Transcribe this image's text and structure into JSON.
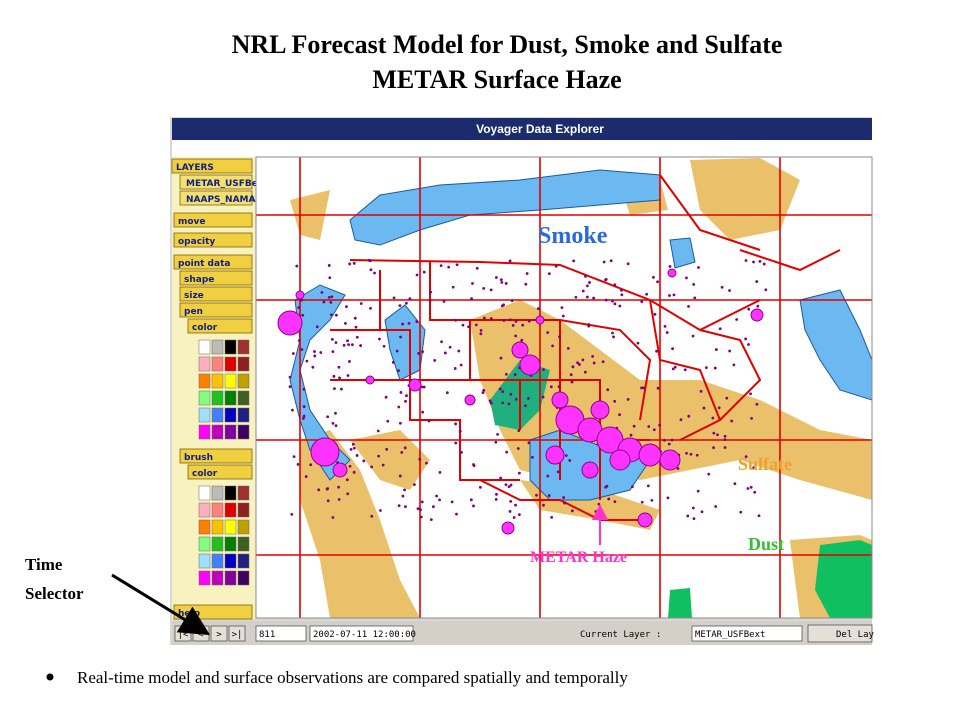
{
  "slide": {
    "title": [
      "NRL Forecast Model for Dust, Smoke and Sulfate",
      "METAR Surface Haze"
    ],
    "window_title": "Voyager Data Explorer",
    "panel": {
      "heading": "LAYERS",
      "layers": [
        "METAR_USFBext",
        "NAAPS_NAMAerTau"
      ],
      "controls": [
        "move",
        "opacity",
        "point data",
        "shape",
        "size",
        "pen",
        "color",
        "brush",
        "color",
        "help"
      ]
    },
    "map_labels": {
      "smoke": "Smoke",
      "sulfate": "Sulfate",
      "dust": "Dust",
      "haze": "METAR Haze"
    },
    "toolbar": {
      "nav_buttons": [
        "|<",
        "<",
        ">",
        ">|"
      ],
      "frame": "811",
      "time": "2002-07-11 12:00:00",
      "current_layer_label": "Current Layer :",
      "current_layer": "METAR_USFBext",
      "delete_button": "Del Lay"
    },
    "annotation": [
      "Time",
      "Selector"
    ],
    "bullet": "Real-time model and surface observations are compared spatially and temporally"
  }
}
